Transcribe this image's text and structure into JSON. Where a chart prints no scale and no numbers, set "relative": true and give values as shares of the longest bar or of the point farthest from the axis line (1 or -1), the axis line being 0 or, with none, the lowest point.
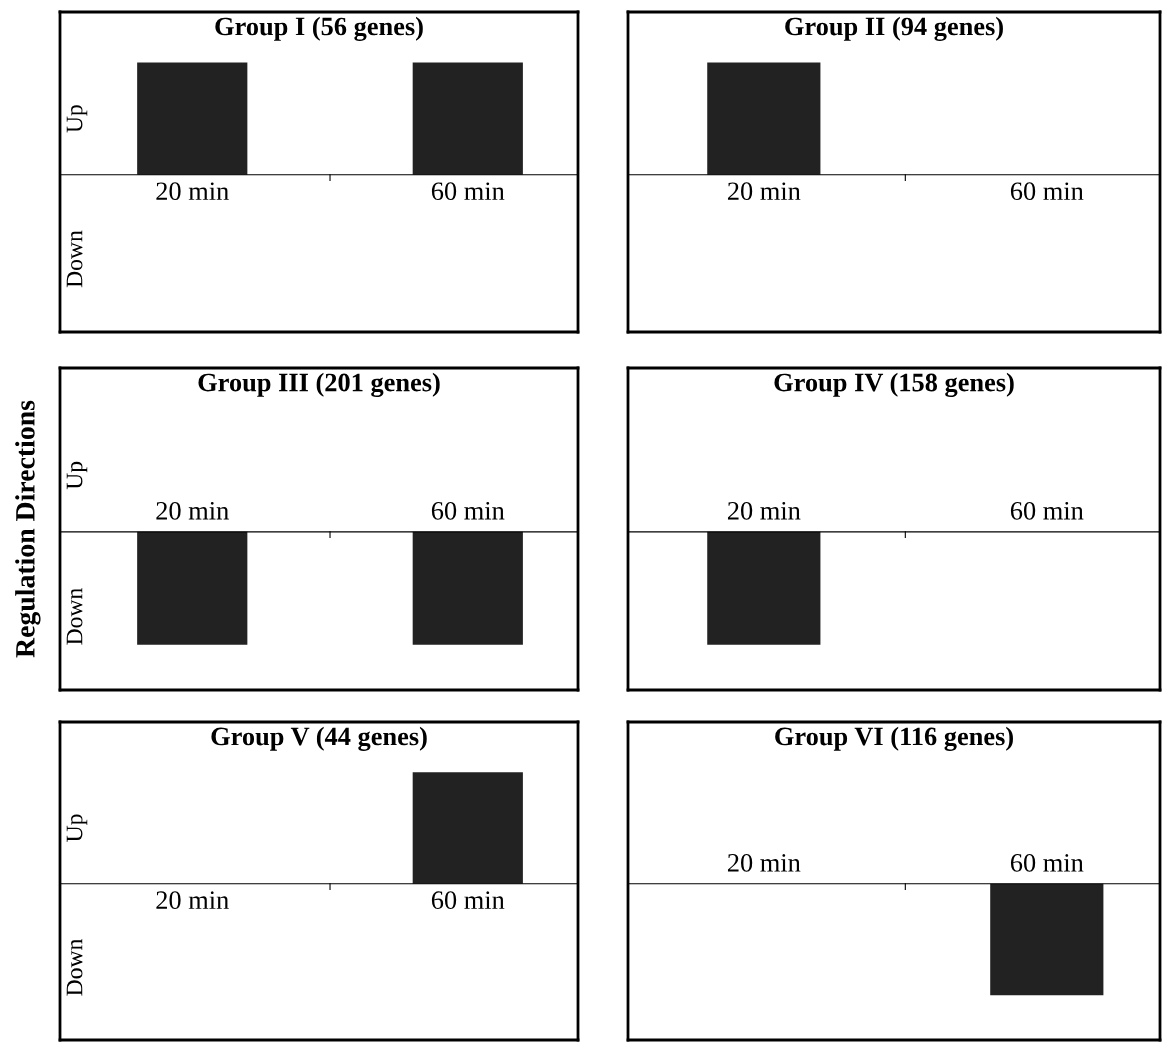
{
  "chart_data": [
    {
      "type": "bar",
      "title": "Group I (56 genes)",
      "categories": [
        "20 min",
        "60 min"
      ],
      "values": [
        1,
        1
      ],
      "color": "#222222",
      "relative": true,
      "annotations": [
        "Up",
        "Down"
      ]
    },
    {
      "type": "bar",
      "title": "Group II (94 genes)",
      "categories": [
        "20 min",
        "60 min"
      ],
      "values": [
        1,
        0
      ],
      "color": "#222222",
      "relative": true
    },
    {
      "type": "bar",
      "title": "Group III (201 genes)",
      "categories": [
        "20 min",
        "60 min"
      ],
      "values": [
        -1,
        -1
      ],
      "color": "#222222",
      "relative": true,
      "ylabel": "Regulation Directions",
      "annotations": [
        "Up",
        "Down"
      ]
    },
    {
      "type": "bar",
      "title": "Group IV (158 genes)",
      "categories": [
        "20 min",
        "60 min"
      ],
      "values": [
        -1,
        0
      ],
      "color": "#222222",
      "relative": true
    },
    {
      "type": "bar",
      "title": "Group V (44 genes)",
      "categories": [
        "20 min",
        "60 min"
      ],
      "values": [
        0,
        1
      ],
      "color": "#222222",
      "relative": true,
      "annotations": [
        "Up",
        "Down"
      ]
    },
    {
      "type": "bar",
      "title": "Group VI (116 genes)",
      "categories": [
        "20 min",
        "60 min"
      ],
      "values": [
        0,
        -1
      ],
      "color": "#222222",
      "relative": true
    }
  ]
}
